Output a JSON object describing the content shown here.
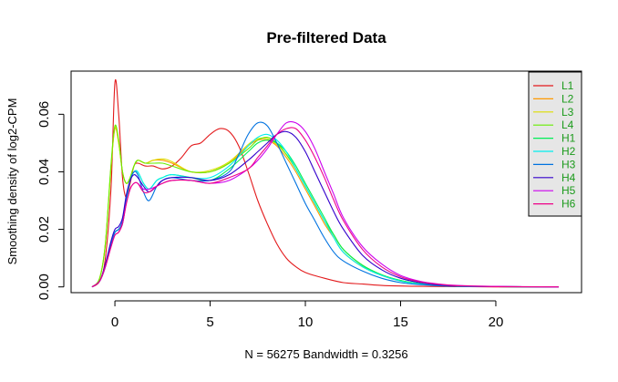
{
  "chart_data": {
    "type": "line",
    "title": "Pre-filtered Data",
    "xlabel": "N = 56275   Bandwidth = 0.3256",
    "ylabel": "Smoothing density of log2-CPM",
    "xlim": [
      -2.3,
      24.5
    ],
    "ylim": [
      -0.002,
      0.075
    ],
    "xticks": [
      "0",
      "5",
      "10",
      "15",
      "20"
    ],
    "yticks": [
      "0.00",
      "0.02",
      "0.04",
      "0.06"
    ],
    "xtick_values": [
      0,
      5,
      10,
      15,
      20
    ],
    "ytick_values": [
      0,
      0.02,
      0.04,
      0.06
    ],
    "grid": false,
    "legend_position": "top-right",
    "series": [
      {
        "name": "L1",
        "color": "#e31a1c",
        "x": [
          -1.2,
          -0.8,
          -0.5,
          -0.2,
          0,
          0.2,
          0.4,
          0.6,
          0.8,
          1.0,
          1.2,
          1.6,
          2,
          2.5,
          3,
          3.5,
          4,
          4.5,
          5,
          5.5,
          6,
          6.5,
          7,
          7.5,
          8,
          8.5,
          9,
          9.5,
          10,
          11,
          12,
          13,
          14,
          15,
          16,
          18,
          20,
          23.3
        ],
        "y": [
          0,
          0.002,
          0.01,
          0.035,
          0.071,
          0.06,
          0.038,
          0.031,
          0.036,
          0.042,
          0.043,
          0.042,
          0.042,
          0.041,
          0.042,
          0.045,
          0.049,
          0.05,
          0.053,
          0.055,
          0.054,
          0.049,
          0.04,
          0.03,
          0.022,
          0.015,
          0.01,
          0.007,
          0.005,
          0.003,
          0.0015,
          0.001,
          0.0005,
          0.0003,
          0.0002,
          0.0001,
          0,
          0
        ]
      },
      {
        "name": "L2",
        "color": "#ff9900",
        "x": [
          -1.2,
          -0.8,
          -0.5,
          -0.2,
          0,
          0.2,
          0.4,
          0.6,
          0.8,
          1.0,
          1.2,
          1.6,
          2,
          2.5,
          3,
          4,
          5,
          6,
          7,
          7.5,
          8,
          8.5,
          9,
          9.5,
          10,
          10.5,
          11,
          11.5,
          12,
          13,
          14,
          15,
          16,
          17,
          18,
          20,
          23.3
        ],
        "y": [
          0,
          0.003,
          0.015,
          0.042,
          0.055,
          0.05,
          0.04,
          0.036,
          0.038,
          0.042,
          0.044,
          0.043,
          0.044,
          0.044,
          0.043,
          0.04,
          0.04,
          0.043,
          0.049,
          0.051,
          0.051,
          0.049,
          0.045,
          0.04,
          0.034,
          0.028,
          0.022,
          0.017,
          0.012,
          0.007,
          0.004,
          0.002,
          0.001,
          0.0005,
          0.0002,
          0.0001,
          0
        ]
      },
      {
        "name": "L3",
        "color": "#dddd00",
        "x": [
          -1.2,
          -0.8,
          -0.5,
          -0.2,
          0,
          0.2,
          0.4,
          0.6,
          0.8,
          1.0,
          1.2,
          1.6,
          2,
          2.5,
          3,
          4,
          5,
          6,
          7,
          7.5,
          8,
          8.5,
          9,
          9.5,
          10,
          10.5,
          11,
          11.5,
          12,
          13,
          14,
          15,
          16,
          17,
          18,
          20,
          23.3
        ],
        "y": [
          0,
          0.003,
          0.015,
          0.042,
          0.0555,
          0.05,
          0.04,
          0.036,
          0.038,
          0.042,
          0.044,
          0.043,
          0.044,
          0.0445,
          0.0435,
          0.04,
          0.0405,
          0.0435,
          0.0495,
          0.0515,
          0.0515,
          0.0495,
          0.046,
          0.041,
          0.035,
          0.029,
          0.023,
          0.018,
          0.013,
          0.0075,
          0.0042,
          0.0022,
          0.0011,
          0.0005,
          0.0002,
          0.0001,
          0
        ]
      },
      {
        "name": "L4",
        "color": "#66ee00",
        "x": [
          -1.2,
          -0.8,
          -0.5,
          -0.2,
          0,
          0.2,
          0.4,
          0.6,
          0.8,
          1.0,
          1.2,
          1.6,
          2,
          2.5,
          3,
          4,
          5,
          6,
          7,
          7.5,
          8,
          8.5,
          9,
          9.5,
          10,
          10.5,
          11,
          11.5,
          12,
          13,
          14,
          15,
          16,
          17,
          18,
          20,
          23.3
        ],
        "y": [
          0,
          0.003,
          0.015,
          0.043,
          0.056,
          0.051,
          0.04,
          0.036,
          0.038,
          0.042,
          0.044,
          0.043,
          0.043,
          0.043,
          0.042,
          0.04,
          0.04,
          0.043,
          0.048,
          0.051,
          0.052,
          0.05,
          0.046,
          0.041,
          0.035,
          0.029,
          0.023,
          0.018,
          0.013,
          0.0075,
          0.0042,
          0.0022,
          0.0011,
          0.0005,
          0.0002,
          0.0001,
          0
        ]
      },
      {
        "name": "H1",
        "color": "#00ee55",
        "x": [
          -1.2,
          -0.8,
          -0.5,
          -0.2,
          0,
          0.2,
          0.4,
          0.6,
          0.8,
          1.0,
          1.2,
          1.5,
          1.8,
          2.2,
          2.5,
          3,
          4,
          5,
          6,
          7,
          7.5,
          8,
          8.5,
          9,
          9.5,
          10,
          10.5,
          11,
          11.5,
          12,
          13,
          14,
          15,
          16,
          17,
          18,
          20,
          23.3
        ],
        "y": [
          0,
          0.002,
          0.007,
          0.015,
          0.019,
          0.02,
          0.022,
          0.03,
          0.037,
          0.04,
          0.04,
          0.036,
          0.034,
          0.037,
          0.038,
          0.039,
          0.038,
          0.037,
          0.041,
          0.047,
          0.05,
          0.051,
          0.05,
          0.047,
          0.042,
          0.036,
          0.03,
          0.024,
          0.018,
          0.013,
          0.0075,
          0.0042,
          0.0022,
          0.0011,
          0.0005,
          0.0002,
          0.0001,
          0
        ]
      },
      {
        "name": "H2",
        "color": "#00eeee",
        "x": [
          -1.2,
          -0.8,
          -0.5,
          -0.2,
          0,
          0.2,
          0.4,
          0.6,
          0.8,
          1.0,
          1.2,
          1.5,
          1.8,
          2.2,
          2.5,
          3,
          4,
          5,
          6,
          7,
          7.5,
          8,
          8.5,
          9,
          9.5,
          10,
          10.5,
          11,
          11.5,
          12,
          13,
          14,
          15,
          16,
          17,
          18,
          20,
          23.3
        ],
        "y": [
          0,
          0.002,
          0.007,
          0.015,
          0.019,
          0.02,
          0.022,
          0.03,
          0.037,
          0.04,
          0.04,
          0.036,
          0.034,
          0.037,
          0.038,
          0.039,
          0.038,
          0.038,
          0.042,
          0.049,
          0.052,
          0.053,
          0.051,
          0.047,
          0.041,
          0.035,
          0.029,
          0.023,
          0.017,
          0.012,
          0.007,
          0.004,
          0.002,
          0.001,
          0.0005,
          0.0002,
          0.0001,
          0
        ]
      },
      {
        "name": "H3",
        "color": "#0072e0",
        "x": [
          -1.2,
          -0.8,
          -0.5,
          -0.2,
          0,
          0.2,
          0.4,
          0.6,
          0.8,
          1.0,
          1.2,
          1.5,
          1.8,
          2.2,
          2.5,
          3,
          4,
          5,
          6,
          6.5,
          7,
          7.5,
          8,
          8.5,
          9,
          9.5,
          10,
          10.5,
          11,
          11.5,
          12,
          13,
          14,
          15,
          16,
          17,
          18,
          20,
          23.3
        ],
        "y": [
          0,
          0.002,
          0.007,
          0.015,
          0.019,
          0.02,
          0.023,
          0.031,
          0.037,
          0.04,
          0.039,
          0.033,
          0.03,
          0.035,
          0.037,
          0.038,
          0.037,
          0.037,
          0.04,
          0.046,
          0.053,
          0.057,
          0.056,
          0.05,
          0.043,
          0.036,
          0.029,
          0.023,
          0.017,
          0.012,
          0.009,
          0.0055,
          0.003,
          0.0015,
          0.0008,
          0.0004,
          0.0002,
          0.0001,
          0
        ]
      },
      {
        "name": "H4",
        "color": "#3300cc",
        "x": [
          -1.2,
          -0.8,
          -0.5,
          -0.2,
          0,
          0.2,
          0.4,
          0.6,
          0.8,
          1.0,
          1.2,
          1.5,
          1.8,
          2.2,
          2.5,
          3,
          4,
          5,
          6,
          7,
          7.5,
          8,
          8.5,
          9,
          9.5,
          10,
          10.5,
          11,
          11.5,
          12,
          13,
          14,
          15,
          16,
          17,
          18,
          20,
          23.3
        ],
        "y": [
          0,
          0.002,
          0.008,
          0.016,
          0.02,
          0.021,
          0.024,
          0.032,
          0.037,
          0.039,
          0.038,
          0.035,
          0.033,
          0.035,
          0.037,
          0.038,
          0.038,
          0.037,
          0.039,
          0.044,
          0.047,
          0.05,
          0.053,
          0.054,
          0.052,
          0.047,
          0.04,
          0.033,
          0.026,
          0.02,
          0.011,
          0.006,
          0.003,
          0.0015,
          0.0007,
          0.0003,
          0.0001,
          0
        ]
      },
      {
        "name": "H5",
        "color": "#cc00ee",
        "x": [
          -1.2,
          -0.8,
          -0.5,
          -0.2,
          0,
          0.2,
          0.4,
          0.6,
          0.8,
          1.0,
          1.2,
          1.5,
          1.8,
          2.2,
          2.5,
          3,
          4,
          5,
          6,
          7,
          7.5,
          8,
          8.5,
          9,
          9.5,
          10,
          10.5,
          11,
          11.5,
          12,
          13,
          14,
          15,
          16,
          17,
          18,
          20,
          23.3
        ],
        "y": [
          0,
          0.002,
          0.007,
          0.014,
          0.018,
          0.019,
          0.022,
          0.029,
          0.034,
          0.036,
          0.036,
          0.034,
          0.034,
          0.035,
          0.036,
          0.037,
          0.037,
          0.036,
          0.037,
          0.041,
          0.044,
          0.048,
          0.053,
          0.057,
          0.057,
          0.054,
          0.048,
          0.04,
          0.032,
          0.024,
          0.014,
          0.008,
          0.004,
          0.002,
          0.001,
          0.0005,
          0.0002,
          0
        ]
      },
      {
        "name": "H6",
        "color": "#ee0088",
        "x": [
          -1.2,
          -0.8,
          -0.5,
          -0.2,
          0,
          0.2,
          0.4,
          0.6,
          0.8,
          1.0,
          1.2,
          1.5,
          1.8,
          2.2,
          2.5,
          3,
          4,
          5,
          6,
          7,
          7.5,
          8,
          8.5,
          9,
          9.5,
          10,
          10.5,
          11,
          11.5,
          12,
          13,
          14,
          15,
          16,
          17,
          18,
          20,
          23.3
        ],
        "y": [
          0,
          0.002,
          0.007,
          0.014,
          0.018,
          0.019,
          0.022,
          0.029,
          0.034,
          0.036,
          0.036,
          0.033,
          0.033,
          0.035,
          0.036,
          0.037,
          0.037,
          0.036,
          0.038,
          0.041,
          0.045,
          0.049,
          0.053,
          0.055,
          0.055,
          0.051,
          0.045,
          0.038,
          0.03,
          0.023,
          0.013,
          0.007,
          0.0035,
          0.0018,
          0.0009,
          0.0004,
          0.0001,
          0
        ]
      }
    ]
  }
}
